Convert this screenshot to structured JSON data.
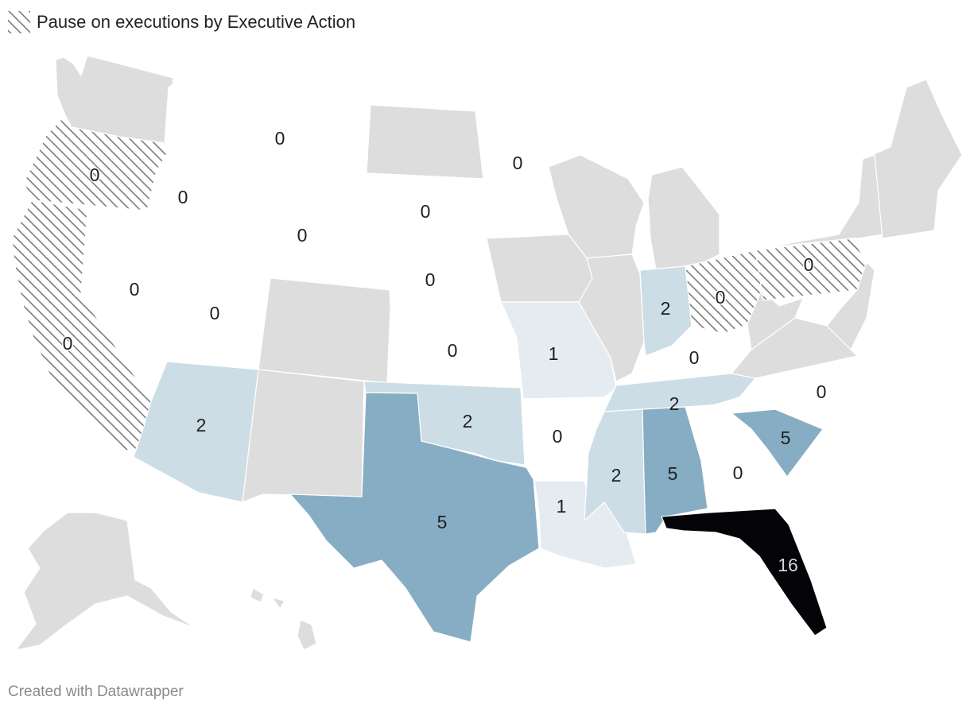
{
  "legend": {
    "label": "Pause on executions by Executive Action"
  },
  "footer": {
    "credit": "Created with Datawrapper"
  },
  "colors": {
    "no_data": "#dddddd",
    "hatch": "#7b7b7b",
    "scale": {
      "0": "#ffffff",
      "1": "#e4ecf2",
      "2": "#ccdde6",
      "5": "#87adc4",
      "16": "#030308"
    }
  },
  "states": [
    {
      "id": "WA",
      "name": "Washington",
      "status": "none"
    },
    {
      "id": "OR",
      "name": "Oregon",
      "status": "pause",
      "value": "0"
    },
    {
      "id": "CA",
      "name": "California",
      "status": "pause",
      "value": "0"
    },
    {
      "id": "ID",
      "name": "Idaho",
      "status": "value",
      "value": "0"
    },
    {
      "id": "NV",
      "name": "Nevada",
      "status": "value",
      "value": "0"
    },
    {
      "id": "MT",
      "name": "Montana",
      "status": "value",
      "value": "0"
    },
    {
      "id": "WY",
      "name": "Wyoming",
      "status": "value",
      "value": "0"
    },
    {
      "id": "UT",
      "name": "Utah",
      "status": "value",
      "value": "0"
    },
    {
      "id": "AZ",
      "name": "Arizona",
      "status": "value",
      "value": "2"
    },
    {
      "id": "CO",
      "name": "Colorado",
      "status": "none"
    },
    {
      "id": "NM",
      "name": "New Mexico",
      "status": "none"
    },
    {
      "id": "ND",
      "name": "North Dakota",
      "status": "none"
    },
    {
      "id": "SD",
      "name": "South Dakota",
      "status": "value",
      "value": "0"
    },
    {
      "id": "NE",
      "name": "Nebraska",
      "status": "value",
      "value": "0"
    },
    {
      "id": "KS",
      "name": "Kansas",
      "status": "value",
      "value": "0"
    },
    {
      "id": "OK",
      "name": "Oklahoma",
      "status": "value",
      "value": "2"
    },
    {
      "id": "TX",
      "name": "Texas",
      "status": "value",
      "value": "5"
    },
    {
      "id": "MN",
      "name": "Minnesota",
      "status": "value",
      "value": "0"
    },
    {
      "id": "IA",
      "name": "Iowa",
      "status": "none"
    },
    {
      "id": "MO",
      "name": "Missouri",
      "status": "value",
      "value": "1"
    },
    {
      "id": "AR",
      "name": "Arkansas",
      "status": "value",
      "value": "0"
    },
    {
      "id": "LA",
      "name": "Louisiana",
      "status": "value",
      "value": "1"
    },
    {
      "id": "WI",
      "name": "Wisconsin",
      "status": "none"
    },
    {
      "id": "IL",
      "name": "Illinois",
      "status": "none"
    },
    {
      "id": "MI",
      "name": "Michigan",
      "status": "none"
    },
    {
      "id": "IN",
      "name": "Indiana",
      "status": "value",
      "value": "2"
    },
    {
      "id": "OH",
      "name": "Ohio",
      "status": "pause",
      "value": "0"
    },
    {
      "id": "KY",
      "name": "Kentucky",
      "status": "value",
      "value": "0"
    },
    {
      "id": "TN",
      "name": "Tennessee",
      "status": "value",
      "value": "2"
    },
    {
      "id": "MS",
      "name": "Mississippi",
      "status": "value",
      "value": "2"
    },
    {
      "id": "AL",
      "name": "Alabama",
      "status": "value",
      "value": "5"
    },
    {
      "id": "GA",
      "name": "Georgia",
      "status": "value",
      "value": "0"
    },
    {
      "id": "FL",
      "name": "Florida",
      "status": "value",
      "value": "16"
    },
    {
      "id": "SC",
      "name": "South Carolina",
      "status": "value",
      "value": "5"
    },
    {
      "id": "NC",
      "name": "North Carolina",
      "status": "value",
      "value": "0"
    },
    {
      "id": "VA",
      "name": "Virginia",
      "status": "none"
    },
    {
      "id": "WV",
      "name": "West Virginia",
      "status": "none"
    },
    {
      "id": "PA",
      "name": "Pennsylvania",
      "status": "pause",
      "value": "0"
    },
    {
      "id": "NY",
      "name": "New York",
      "status": "none"
    },
    {
      "id": "NE_REGION",
      "name": "New England",
      "status": "none"
    },
    {
      "id": "MIDATL",
      "name": "Mid-Atlantic",
      "status": "none"
    },
    {
      "id": "AK",
      "name": "Alaska",
      "status": "none"
    },
    {
      "id": "HI",
      "name": "Hawaii",
      "status": "none"
    }
  ]
}
